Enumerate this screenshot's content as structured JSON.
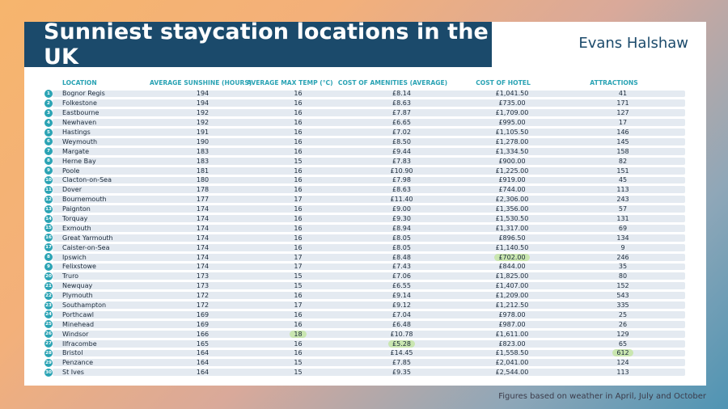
{
  "title": "Sunniest staycation locations in the UK",
  "brand": "Evans Halshaw",
  "footnote": "Figures based on weather in April, July and October",
  "headers": {
    "location": "LOCATION",
    "sunshine": "AVERAGE SUNSHINE (HOURS)",
    "temp": "AVERAGE MAX TEMP (°C)",
    "amenities": "COST OF AMENITIES (AVERAGE)",
    "hotel": "COST OF HOTEL",
    "attractions": "ATTRACTIONS"
  },
  "highlight_color": "#c9e6b0",
  "accent_color": "#2aa3b4",
  "title_bar_color": "#1b4a6b",
  "rows": [
    {
      "num": "1",
      "location": "Bognor Regis",
      "sunshine": "194",
      "temp": "16",
      "amenities": "£8.14",
      "hotel": "£1,041.50",
      "attractions": "41"
    },
    {
      "num": "2",
      "location": "Folkestone",
      "sunshine": "194",
      "temp": "16",
      "amenities": "£8.63",
      "hotel": "£735.00",
      "attractions": "171"
    },
    {
      "num": "3",
      "location": "Eastbourne",
      "sunshine": "192",
      "temp": "16",
      "amenities": "£7.87",
      "hotel": "£1,709.00",
      "attractions": "127"
    },
    {
      "num": "4",
      "location": "Newhaven",
      "sunshine": "192",
      "temp": "16",
      "amenities": "£6.65",
      "hotel": "£995.00",
      "attractions": "17"
    },
    {
      "num": "5",
      "location": "Hastings",
      "sunshine": "191",
      "temp": "16",
      "amenities": "£7.02",
      "hotel": "£1,105.50",
      "attractions": "146"
    },
    {
      "num": "6",
      "location": "Weymouth",
      "sunshine": "190",
      "temp": "16",
      "amenities": "£8.50",
      "hotel": "£1,278.00",
      "attractions": "145"
    },
    {
      "num": "7",
      "location": "Margate",
      "sunshine": "183",
      "temp": "16",
      "amenities": "£9.44",
      "hotel": "£1,334.50",
      "attractions": "158"
    },
    {
      "num": "8",
      "location": "Herne Bay",
      "sunshine": "183",
      "temp": "15",
      "amenities": "£7.83",
      "hotel": "£900.00",
      "attractions": "82"
    },
    {
      "num": "9",
      "location": "Poole",
      "sunshine": "181",
      "temp": "16",
      "amenities": "£10.90",
      "hotel": "£1,225.00",
      "attractions": "151"
    },
    {
      "num": "10",
      "location": "Clacton-on-Sea",
      "sunshine": "180",
      "temp": "16",
      "amenities": "£7.98",
      "hotel": "£919.00",
      "attractions": "45"
    },
    {
      "num": "11",
      "location": "Dover",
      "sunshine": "178",
      "temp": "16",
      "amenities": "£8.63",
      "hotel": "£744.00",
      "attractions": "113"
    },
    {
      "num": "12",
      "location": "Bournemouth",
      "sunshine": "177",
      "temp": "17",
      "amenities": "£11.40",
      "hotel": "£2,306.00",
      "attractions": "243"
    },
    {
      "num": "13",
      "location": "Paignton",
      "sunshine": "174",
      "temp": "16",
      "amenities": "£9.00",
      "hotel": "£1,356.00",
      "attractions": "57"
    },
    {
      "num": "14",
      "location": "Torquay",
      "sunshine": "174",
      "temp": "16",
      "amenities": "£9.30",
      "hotel": "£1,530.50",
      "attractions": "131"
    },
    {
      "num": "15",
      "location": "Exmouth",
      "sunshine": "174",
      "temp": "16",
      "amenities": "£8.94",
      "hotel": "£1,317.00",
      "attractions": "69"
    },
    {
      "num": "16",
      "location": "Great Yarmouth",
      "sunshine": "174",
      "temp": "16",
      "amenities": "£8.05",
      "hotel": "£896.50",
      "attractions": "134"
    },
    {
      "num": "17",
      "location": "Caister-on-Sea",
      "sunshine": "174",
      "temp": "16",
      "amenities": "£8.05",
      "hotel": "£1,140.50",
      "attractions": "9"
    },
    {
      "num": "8",
      "location": "Ipswich",
      "sunshine": "174",
      "temp": "17",
      "amenities": "£8.48",
      "hotel": "£702.00",
      "attractions": "246",
      "hl": "hotel"
    },
    {
      "num": "9",
      "location": "Felixstowe",
      "sunshine": "174",
      "temp": "17",
      "amenities": "£7.43",
      "hotel": "£844.00",
      "attractions": "35"
    },
    {
      "num": "20",
      "location": "Truro",
      "sunshine": "173",
      "temp": "15",
      "amenities": "£7.06",
      "hotel": "£1,825.00",
      "attractions": "80"
    },
    {
      "num": "21",
      "location": "Newquay",
      "sunshine": "173",
      "temp": "15",
      "amenities": "£6.55",
      "hotel": "£1,407.00",
      "attractions": "152"
    },
    {
      "num": "22",
      "location": "Plymouth",
      "sunshine": "172",
      "temp": "16",
      "amenities": "£9.14",
      "hotel": "£1,209.00",
      "attractions": "543"
    },
    {
      "num": "23",
      "location": "Southampton",
      "sunshine": "172",
      "temp": "17",
      "amenities": "£9.12",
      "hotel": "£1,212.50",
      "attractions": "335"
    },
    {
      "num": "24",
      "location": "Porthcawl",
      "sunshine": "169",
      "temp": "16",
      "amenities": "£7.04",
      "hotel": "£978.00",
      "attractions": "25"
    },
    {
      "num": "25",
      "location": "Minehead",
      "sunshine": "169",
      "temp": "16",
      "amenities": "£6.48",
      "hotel": "£987.00",
      "attractions": "26"
    },
    {
      "num": "26",
      "location": "Windsor",
      "sunshine": "166",
      "temp": "18",
      "amenities": "£10.78",
      "hotel": "£1,611.00",
      "attractions": "129",
      "hl": "temp"
    },
    {
      "num": "27",
      "location": "Ilfracombe",
      "sunshine": "165",
      "temp": "16",
      "amenities": "£5.28",
      "hotel": "£823.00",
      "attractions": "65",
      "hl": "amenities"
    },
    {
      "num": "28",
      "location": "Bristol",
      "sunshine": "164",
      "temp": "16",
      "amenities": "£14.45",
      "hotel": "£1,558.50",
      "attractions": "612",
      "hl": "attractions"
    },
    {
      "num": "29",
      "location": "Penzance",
      "sunshine": "164",
      "temp": "15",
      "amenities": "£7.85",
      "hotel": "£2,041.00",
      "attractions": "124"
    },
    {
      "num": "30",
      "location": "St Ives",
      "sunshine": "164",
      "temp": "15",
      "amenities": "£9.35",
      "hotel": "£2,544.00",
      "attractions": "113"
    }
  ]
}
